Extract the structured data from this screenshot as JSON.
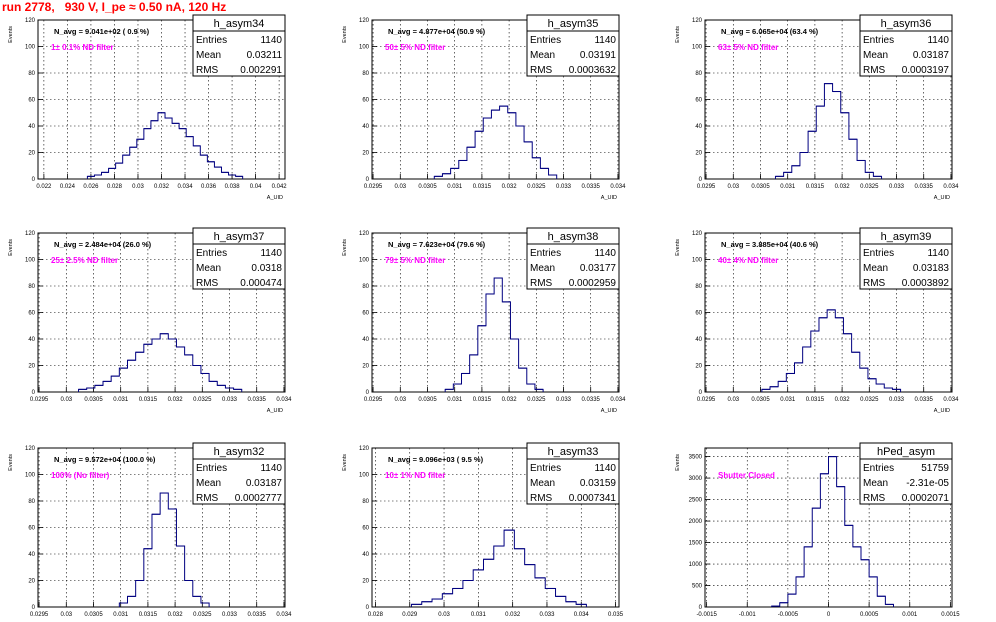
{
  "page": {
    "title": "run 2778,   930 V, I_pe ≈ 0.50 nA, 120 Hz"
  },
  "colors": {
    "hist": "#000080",
    "filter_label": "#ff00ff",
    "title": "#ff0000",
    "grid": "#000000"
  },
  "stats_labels": {
    "entries": "Entries",
    "mean": "Mean",
    "rms": "RMS"
  },
  "y_axis_label": "Events",
  "x_axis_label": "A_UID",
  "chart_data": [
    {
      "type": "histogram",
      "name": "h_asym34",
      "navg": "N_avg = 9.041e+02 ( 0.9 %)",
      "filter": "1± 0.1% ND filter",
      "entries": "1140",
      "mean": "0.03211",
      "rms": "0.002291",
      "xlim": [
        0.0215,
        0.0425
      ],
      "ylim": [
        0,
        120
      ],
      "xticks": [
        "0.022",
        "0.024",
        "0.026",
        "0.028",
        "0.03",
        "0.032",
        "0.034",
        "0.036",
        "0.038",
        "0.04",
        "0.042"
      ],
      "xtick_values": [
        0.022,
        0.024,
        0.026,
        0.028,
        0.03,
        0.032,
        0.034,
        0.036,
        0.038,
        0.04,
        0.042
      ],
      "yticks": [
        "0",
        "20",
        "40",
        "60",
        "80",
        "100",
        "120"
      ],
      "ytick_values": [
        0,
        20,
        40,
        60,
        80,
        100,
        120
      ],
      "x": [
        0.026,
        0.0266,
        0.0272,
        0.0278,
        0.0284,
        0.029,
        0.0296,
        0.0302,
        0.0308,
        0.0314,
        0.032,
        0.0326,
        0.0332,
        0.0338,
        0.0344,
        0.035,
        0.0356,
        0.0362,
        0.0368,
        0.0374,
        0.038,
        0.0386
      ],
      "values": [
        2,
        3,
        5,
        8,
        12,
        18,
        24,
        30,
        38,
        44,
        50,
        46,
        42,
        38,
        32,
        25,
        18,
        13,
        9,
        5,
        3,
        2
      ]
    },
    {
      "type": "histogram",
      "name": "h_asym35",
      "navg": "N_avg = 4.877e+04 (50.9 %)",
      "filter": "50± 5% ND filter",
      "entries": "1140",
      "mean": "0.03191",
      "rms": "0.0003632",
      "xlim": [
        0.02948,
        0.03402
      ],
      "ylim": [
        0,
        120
      ],
      "xticks": [
        "0.0295",
        "0.03",
        "0.0305",
        "0.031",
        "0.0315",
        "0.032",
        "0.0325",
        "0.033",
        "0.0335",
        "0.034"
      ],
      "xtick_values": [
        0.0295,
        0.03,
        0.0305,
        0.031,
        0.0315,
        0.032,
        0.0325,
        0.033,
        0.0335,
        0.034
      ],
      "yticks": [
        "0",
        "20",
        "40",
        "60",
        "80",
        "100",
        "120"
      ],
      "ytick_values": [
        0,
        20,
        40,
        60,
        80,
        100,
        120
      ],
      "x": [
        0.0307,
        0.03085,
        0.031,
        0.03115,
        0.0313,
        0.03145,
        0.0316,
        0.03175,
        0.0319,
        0.03205,
        0.0322,
        0.03235,
        0.0325,
        0.03265,
        0.0328
      ],
      "values": [
        2,
        4,
        8,
        14,
        24,
        36,
        46,
        52,
        55,
        50,
        40,
        28,
        16,
        8,
        3
      ]
    },
    {
      "type": "histogram",
      "name": "h_asym36",
      "navg": "N_avg = 6.065e+04 (63.4 %)",
      "filter": "63± 5% ND filter",
      "entries": "1140",
      "mean": "0.03187",
      "rms": "0.0003197",
      "xlim": [
        0.02948,
        0.03402
      ],
      "ylim": [
        0,
        120
      ],
      "xticks": [
        "0.0295",
        "0.03",
        "0.0305",
        "0.031",
        "0.0315",
        "0.032",
        "0.0325",
        "0.033",
        "0.0335",
        "0.034"
      ],
      "xtick_values": [
        0.0295,
        0.03,
        0.0305,
        0.031,
        0.0315,
        0.032,
        0.0325,
        0.033,
        0.0335,
        0.034
      ],
      "yticks": [
        "0",
        "20",
        "40",
        "60",
        "80",
        "100",
        "120"
      ],
      "ytick_values": [
        0,
        20,
        40,
        60,
        80,
        100,
        120
      ],
      "x": [
        0.03085,
        0.031,
        0.03115,
        0.0313,
        0.03145,
        0.0316,
        0.03175,
        0.0319,
        0.03205,
        0.0322,
        0.03235,
        0.0325,
        0.03265
      ],
      "values": [
        2,
        5,
        10,
        20,
        36,
        55,
        72,
        66,
        50,
        30,
        14,
        5,
        2
      ]
    },
    {
      "type": "histogram",
      "name": "h_asym37",
      "navg": "N_avg = 2.484e+04 (26.0 %)",
      "filter": "25± 2.5% ND filter",
      "entries": "1140",
      "mean": "0.0318",
      "rms": "0.000474",
      "xlim": [
        0.02948,
        0.03402
      ],
      "ylim": [
        0,
        120
      ],
      "xticks": [
        "0.0295",
        "0.03",
        "0.0305",
        "0.031",
        "0.0315",
        "0.032",
        "0.0325",
        "0.033",
        "0.0335",
        "0.034"
      ],
      "xtick_values": [
        0.0295,
        0.03,
        0.0305,
        0.031,
        0.0315,
        0.032,
        0.0325,
        0.033,
        0.0335,
        0.034
      ],
      "yticks": [
        "0",
        "20",
        "40",
        "60",
        "80",
        "100",
        "120"
      ],
      "ytick_values": [
        0,
        20,
        40,
        60,
        80,
        100,
        120
      ],
      "x": [
        0.0303,
        0.03045,
        0.0306,
        0.03075,
        0.0309,
        0.03105,
        0.0312,
        0.03135,
        0.0315,
        0.03165,
        0.0318,
        0.03195,
        0.0321,
        0.03225,
        0.0324,
        0.03255,
        0.0327,
        0.03285,
        0.033,
        0.03315
      ],
      "values": [
        2,
        3,
        5,
        8,
        12,
        18,
        24,
        30,
        36,
        40,
        44,
        40,
        34,
        28,
        20,
        14,
        8,
        5,
        3,
        2
      ]
    },
    {
      "type": "histogram",
      "name": "h_asym38",
      "navg": "N_avg = 7.623e+04 (79.6 %)",
      "filter": "79± 5% ND filter",
      "entries": "1140",
      "mean": "0.03177",
      "rms": "0.0002959",
      "xlim": [
        0.02948,
        0.03402
      ],
      "ylim": [
        0,
        120
      ],
      "xticks": [
        "0.0295",
        "0.03",
        "0.0305",
        "0.031",
        "0.0315",
        "0.032",
        "0.0325",
        "0.033",
        "0.0335",
        "0.034"
      ],
      "xtick_values": [
        0.0295,
        0.03,
        0.0305,
        0.031,
        0.0315,
        0.032,
        0.0325,
        0.033,
        0.0335,
        0.034
      ],
      "yticks": [
        "0",
        "20",
        "40",
        "60",
        "80",
        "100",
        "120"
      ],
      "ytick_values": [
        0,
        20,
        40,
        60,
        80,
        100,
        120
      ],
      "x": [
        0.0309,
        0.03105,
        0.0312,
        0.03135,
        0.0315,
        0.03165,
        0.0318,
        0.03195,
        0.0321,
        0.03225,
        0.0324,
        0.03255
      ],
      "values": [
        2,
        6,
        14,
        28,
        50,
        74,
        86,
        68,
        40,
        18,
        6,
        2
      ]
    },
    {
      "type": "histogram",
      "name": "h_asym39",
      "navg": "N_avg = 3.885e+04 (40.6 %)",
      "filter": "40± 4% ND filter",
      "entries": "1140",
      "mean": "0.03183",
      "rms": "0.0003892",
      "xlim": [
        0.02948,
        0.03402
      ],
      "ylim": [
        0,
        120
      ],
      "xticks": [
        "0.0295",
        "0.03",
        "0.0305",
        "0.031",
        "0.0315",
        "0.032",
        "0.0325",
        "0.033",
        "0.0335",
        "0.034"
      ],
      "xtick_values": [
        0.0295,
        0.03,
        0.0305,
        0.031,
        0.0315,
        0.032,
        0.0325,
        0.033,
        0.0335,
        0.034
      ],
      "yticks": [
        "0",
        "20",
        "40",
        "60",
        "80",
        "100",
        "120"
      ],
      "ytick_values": [
        0,
        20,
        40,
        60,
        80,
        100,
        120
      ],
      "x": [
        0.0306,
        0.03075,
        0.0309,
        0.03105,
        0.0312,
        0.03135,
        0.0315,
        0.03165,
        0.0318,
        0.03195,
        0.0321,
        0.03225,
        0.0324,
        0.03255,
        0.0327,
        0.03285,
        0.033
      ],
      "values": [
        2,
        4,
        8,
        14,
        22,
        34,
        46,
        56,
        62,
        56,
        44,
        30,
        18,
        10,
        6,
        3,
        2
      ]
    },
    {
      "type": "histogram",
      "name": "h_asym32",
      "navg": "N_avg = 9.572e+04 (100.0 %)",
      "filter": "100% (No filter)",
      "entries": "1140",
      "mean": "0.03187",
      "rms": "0.0002777",
      "xlim": [
        0.02948,
        0.03402
      ],
      "ylim": [
        0,
        120
      ],
      "xticks": [
        "0.0295",
        "0.03",
        "0.0305",
        "0.031",
        "0.0315",
        "0.032",
        "0.0325",
        "0.033",
        "0.0335",
        "0.034"
      ],
      "xtick_values": [
        0.0295,
        0.03,
        0.0305,
        0.031,
        0.0315,
        0.032,
        0.0325,
        0.033,
        0.0335,
        0.034
      ],
      "yticks": [
        "0",
        "20",
        "40",
        "60",
        "80",
        "100",
        "120"
      ],
      "ytick_values": [
        0,
        20,
        40,
        60,
        80,
        100,
        120
      ],
      "x": [
        0.03105,
        0.0312,
        0.03135,
        0.0315,
        0.03165,
        0.0318,
        0.03195,
        0.0321,
        0.03225,
        0.0324,
        0.03255
      ],
      "values": [
        3,
        8,
        20,
        44,
        70,
        86,
        74,
        46,
        20,
        8,
        3
      ]
    },
    {
      "type": "histogram",
      "name": "h_asym33",
      "navg": "N_avg = 9.096e+03 ( 9.5 %)",
      "filter": "10± 1% ND filter",
      "entries": "1140",
      "mean": "0.03159",
      "rms": "0.0007341",
      "xlim": [
        0.0279,
        0.0351
      ],
      "ylim": [
        0,
        120
      ],
      "xticks": [
        "0.028",
        "0.029",
        "0.03",
        "0.031",
        "0.032",
        "0.033",
        "0.034",
        "0.035"
      ],
      "xtick_values": [
        0.028,
        0.029,
        0.03,
        0.031,
        0.032,
        0.033,
        0.034,
        0.035
      ],
      "yticks": [
        "0",
        "20",
        "40",
        "60",
        "80",
        "100",
        "120"
      ],
      "ytick_values": [
        0,
        20,
        40,
        60,
        80,
        100,
        120
      ],
      "x": [
        0.0292,
        0.0295,
        0.0298,
        0.0301,
        0.0304,
        0.0307,
        0.031,
        0.0313,
        0.0316,
        0.0319,
        0.0322,
        0.0325,
        0.0328,
        0.0331,
        0.0334,
        0.0337,
        0.034
      ],
      "values": [
        2,
        4,
        6,
        10,
        14,
        20,
        28,
        36,
        46,
        58,
        44,
        32,
        22,
        14,
        8,
        4,
        2
      ]
    },
    {
      "type": "histogram",
      "name": "hPed_asym",
      "navg": "",
      "filter": "Shutter Closed",
      "entries": "51759",
      "mean": "-2.31e-05",
      "rms": "0.0002071",
      "xlim": [
        -0.00152,
        0.00152
      ],
      "ylim": [
        0,
        3700
      ],
      "xticks": [
        "-0.0015",
        "-0.001",
        "-0.0005",
        "0",
        "0.0005",
        "0.001",
        "0.0015"
      ],
      "xtick_values": [
        -0.0015,
        -0.001,
        -0.0005,
        0,
        0.0005,
        0.001,
        0.0015
      ],
      "yticks": [
        "0",
        "500",
        "1000",
        "1500",
        "2000",
        "2500",
        "3000",
        "3500"
      ],
      "ytick_values": [
        0,
        500,
        1000,
        1500,
        2000,
        2500,
        3000,
        3500
      ],
      "x": [
        -0.00065,
        -0.00055,
        -0.00045,
        -0.00035,
        -0.00025,
        -0.00015,
        -5e-05,
        5e-05,
        0.00015,
        0.00025,
        0.00035,
        0.00045,
        0.00055,
        0.00065,
        0.00075
      ],
      "values": [
        20,
        100,
        300,
        700,
        1400,
        2300,
        3100,
        3500,
        2800,
        1900,
        1400,
        1100,
        700,
        250,
        60
      ]
    }
  ]
}
